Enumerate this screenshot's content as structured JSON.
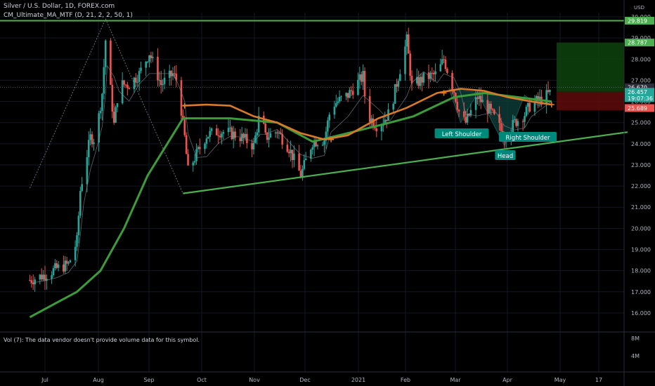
{
  "header": {
    "title": "Silver / U.S. Dollar, 1D, FOREX.com",
    "indicator": "CM_Ultimate_MA_MTF (D, 21, 2, 2, 50, 1)"
  },
  "volume_note": "Vol (7): The data vendor doesn't provide volume data for this symbol.",
  "currency_label": "USD",
  "colors": {
    "background": "#000000",
    "up": "#26a69a",
    "down": "#ef5350",
    "trendline": "#4caf50",
    "ma_orange": "#d97a2b",
    "long_ma": "#3d9c3a",
    "pattern_label_bg": "#00897b",
    "target_zone": "#0d3f0d",
    "stop_zone": "#5a0a0a"
  },
  "chart_data": {
    "type": "candlestick",
    "symbol": "Silver / U.S. Dollar",
    "timeframe": "1D",
    "ylim": [
      15.2,
      30.2
    ],
    "y_ticks": [
      "16.000",
      "17.000",
      "18.000",
      "19.000",
      "20.000",
      "21.000",
      "22.000",
      "23.000",
      "24.000",
      "25.000",
      "26.000",
      "27.000",
      "28.000",
      "29.000",
      "30.000"
    ],
    "x_ticks": [
      "Jul",
      "Aug",
      "Sep",
      "Oct",
      "Nov",
      "Dec",
      "2021",
      "Feb",
      "Mar",
      "Apr",
      "May",
      "17"
    ],
    "volume_ticks": [
      "8M",
      "4M"
    ],
    "price_markers": [
      {
        "label": "29.819",
        "value": 29.819,
        "color": "#4caf50"
      },
      {
        "label": "28.787",
        "value": 28.787,
        "color": "#4caf50"
      },
      {
        "label": "26.670",
        "value": 26.67,
        "color": "#2a2e39"
      },
      {
        "label": "26.457",
        "sublabel": "19:07:36",
        "value": 26.457,
        "color": "#26a69a"
      },
      {
        "label": "25.689",
        "value": 25.689,
        "color": "#ef5350"
      }
    ],
    "annotations": [
      "Left Shoulder",
      "Head",
      "Right Shoulder"
    ],
    "horizontal_line": 29.819,
    "rising_trendline": [
      {
        "x": "Sep 21",
        "y": 21.65
      },
      {
        "x": "Apr 30",
        "y": 24.55
      }
    ],
    "close_series": [
      {
        "x": "Jun 22",
        "y": 17.55
      },
      {
        "x": "Jul 1",
        "y": 17.8
      },
      {
        "x": "Jul 8",
        "y": 18.1
      },
      {
        "x": "Jul 15",
        "y": 18.3
      },
      {
        "x": "Jul 20",
        "y": 19.4
      },
      {
        "x": "Jul 22",
        "y": 21.8
      },
      {
        "x": "Jul 24",
        "y": 22.7
      },
      {
        "x": "Jul 28",
        "y": 24.3
      },
      {
        "x": "Jul 31",
        "y": 24.2
      },
      {
        "x": "Aug 4",
        "y": 26.4
      },
      {
        "x": "Aug 6",
        "y": 28.9
      },
      {
        "x": "Aug 7",
        "y": 28.2
      },
      {
        "x": "Aug 11",
        "y": 24.9
      },
      {
        "x": "Aug 14",
        "y": 26.8
      },
      {
        "x": "Aug 20",
        "y": 26.8
      },
      {
        "x": "Aug 26",
        "y": 27.3
      },
      {
        "x": "Sep 1",
        "y": 28.3
      },
      {
        "x": "Sep 8",
        "y": 26.8
      },
      {
        "x": "Sep 15",
        "y": 27.3
      },
      {
        "x": "Sep 18",
        "y": 26.9
      },
      {
        "x": "Sep 22",
        "y": 24.3
      },
      {
        "x": "Sep 24",
        "y": 22.7
      },
      {
        "x": "Sep 29",
        "y": 23.5
      },
      {
        "x": "Oct 5",
        "y": 24.4
      },
      {
        "x": "Oct 12",
        "y": 24.6
      },
      {
        "x": "Oct 19",
        "y": 24.5
      },
      {
        "x": "Oct 26",
        "y": 24.3
      },
      {
        "x": "Nov 2",
        "y": 23.9
      },
      {
        "x": "Nov 6",
        "y": 25.6
      },
      {
        "x": "Nov 9",
        "y": 24.3
      },
      {
        "x": "Nov 16",
        "y": 24.6
      },
      {
        "x": "Nov 23",
        "y": 23.8
      },
      {
        "x": "Nov 30",
        "y": 22.5
      },
      {
        "x": "Dec 7",
        "y": 24.1
      },
      {
        "x": "Dec 14",
        "y": 24.2
      },
      {
        "x": "Dec 18",
        "y": 25.8
      },
      {
        "x": "Dec 28",
        "y": 26.3
      },
      {
        "x": "Jan 6",
        "y": 27.2
      },
      {
        "x": "Jan 8",
        "y": 25.4
      },
      {
        "x": "Jan 15",
        "y": 24.8
      },
      {
        "x": "Jan 22",
        "y": 25.5
      },
      {
        "x": "Feb 1",
        "y": 28.9
      },
      {
        "x": "Feb 4",
        "y": 26.7
      },
      {
        "x": "Feb 11",
        "y": 27.1
      },
      {
        "x": "Feb 19",
        "y": 27.3
      },
      {
        "x": "Feb 23",
        "y": 28.0
      },
      {
        "x": "Mar 1",
        "y": 26.5
      },
      {
        "x": "Mar 5",
        "y": 25.2
      },
      {
        "x": "Mar 8",
        "y": 25.0
      },
      {
        "x": "Mar 15",
        "y": 26.2
      },
      {
        "x": "Mar 22",
        "y": 25.6
      },
      {
        "x": "Mar 26",
        "y": 25.1
      },
      {
        "x": "Mar 31",
        "y": 24.3
      },
      {
        "x": "Apr 6",
        "y": 25.0
      },
      {
        "x": "Apr 12",
        "y": 25.4
      },
      {
        "x": "Apr 16",
        "y": 25.9
      },
      {
        "x": "Apr 22",
        "y": 26.1
      },
      {
        "x": "Apr 28",
        "y": 26.457
      }
    ],
    "ma_orange_series": [
      {
        "x": "Sep 21",
        "y": 25.8
      },
      {
        "x": "Oct 5",
        "y": 25.85
      },
      {
        "x": "Oct 19",
        "y": 25.8
      },
      {
        "x": "Nov 2",
        "y": 25.3
      },
      {
        "x": "Nov 16",
        "y": 25.0
      },
      {
        "x": "Nov 30",
        "y": 24.5
      },
      {
        "x": "Dec 14",
        "y": 24.2
      },
      {
        "x": "Dec 28",
        "y": 24.4
      },
      {
        "x": "Jan 15",
        "y": 25.2
      },
      {
        "x": "Feb 1",
        "y": 25.7
      },
      {
        "x": "Feb 19",
        "y": 26.4
      },
      {
        "x": "Mar 5",
        "y": 26.6
      },
      {
        "x": "Mar 19",
        "y": 26.5
      },
      {
        "x": "Apr 2",
        "y": 26.2
      },
      {
        "x": "Apr 16",
        "y": 26.0
      },
      {
        "x": "Apr 28",
        "y": 25.85
      }
    ],
    "long_ma_series": [
      {
        "x": "Jun 22",
        "y": 15.8
      },
      {
        "x": "Jul 6",
        "y": 16.4
      },
      {
        "x": "Jul 20",
        "y": 17.0
      },
      {
        "x": "Aug 3",
        "y": 18.0
      },
      {
        "x": "Aug 17",
        "y": 20.0
      },
      {
        "x": "Aug 31",
        "y": 22.5
      },
      {
        "x": "Sep 21",
        "y": 25.2
      },
      {
        "x": "Oct 19",
        "y": 25.2
      },
      {
        "x": "Nov 16",
        "y": 25.0
      },
      {
        "x": "Dec 7",
        "y": 24.1
      },
      {
        "x": "Dec 28",
        "y": 24.5
      },
      {
        "x": "Jan 22",
        "y": 25.0
      },
      {
        "x": "Feb 5",
        "y": 25.3
      },
      {
        "x": "Mar 1",
        "y": 26.2
      },
      {
        "x": "Mar 19",
        "y": 26.4
      },
      {
        "x": "Apr 28",
        "y": 26.0
      }
    ]
  }
}
